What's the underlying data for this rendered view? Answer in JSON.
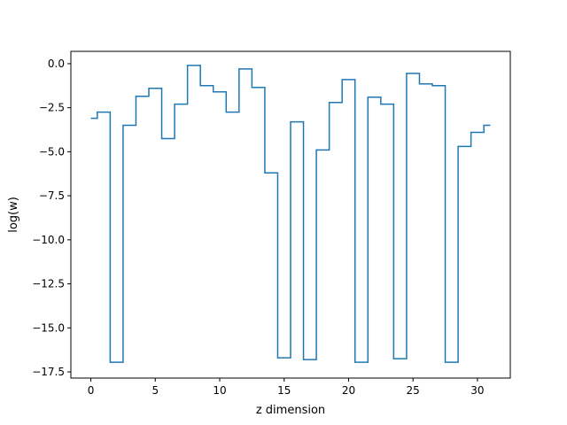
{
  "chart_data": {
    "type": "line",
    "drawstyle": "steps-mid",
    "xlabel": "z dimension",
    "ylabel": "log(w)",
    "xlim": [
      -1.55,
      32.55
    ],
    "ylim": [
      -17.85,
      0.7
    ],
    "xticks": [
      0,
      5,
      10,
      15,
      20,
      25,
      30
    ],
    "xtick_labels": [
      "0",
      "5",
      "10",
      "15",
      "20",
      "25",
      "30"
    ],
    "yticks": [
      0.0,
      -2.5,
      -5.0,
      -7.5,
      -10.0,
      -12.5,
      -15.0,
      -17.5
    ],
    "ytick_labels": [
      "0.0",
      "−2.5",
      "−5.0",
      "−7.5",
      "−10.0",
      "−12.5",
      "−15.0",
      "−17.5"
    ],
    "grid": false,
    "series": [
      {
        "color": "#1f77b4",
        "x": [
          0,
          1,
          2,
          3,
          4,
          5,
          6,
          7,
          8,
          9,
          10,
          11,
          12,
          13,
          14,
          15,
          16,
          17,
          18,
          19,
          20,
          21,
          22,
          23,
          24,
          25,
          26,
          27,
          28,
          29,
          30,
          31
        ],
        "y": [
          -3.1,
          -2.75,
          -16.95,
          -3.5,
          -1.85,
          -1.4,
          -4.25,
          -2.3,
          -0.1,
          -1.25,
          -1.6,
          -2.75,
          -0.3,
          -1.35,
          -6.2,
          -16.7,
          -3.3,
          -16.8,
          -4.9,
          -2.2,
          -0.9,
          -16.95,
          -1.9,
          -2.3,
          -16.75,
          -0.55,
          -1.15,
          -1.25,
          -16.95,
          -4.7,
          -3.9,
          -3.5
        ]
      }
    ]
  }
}
